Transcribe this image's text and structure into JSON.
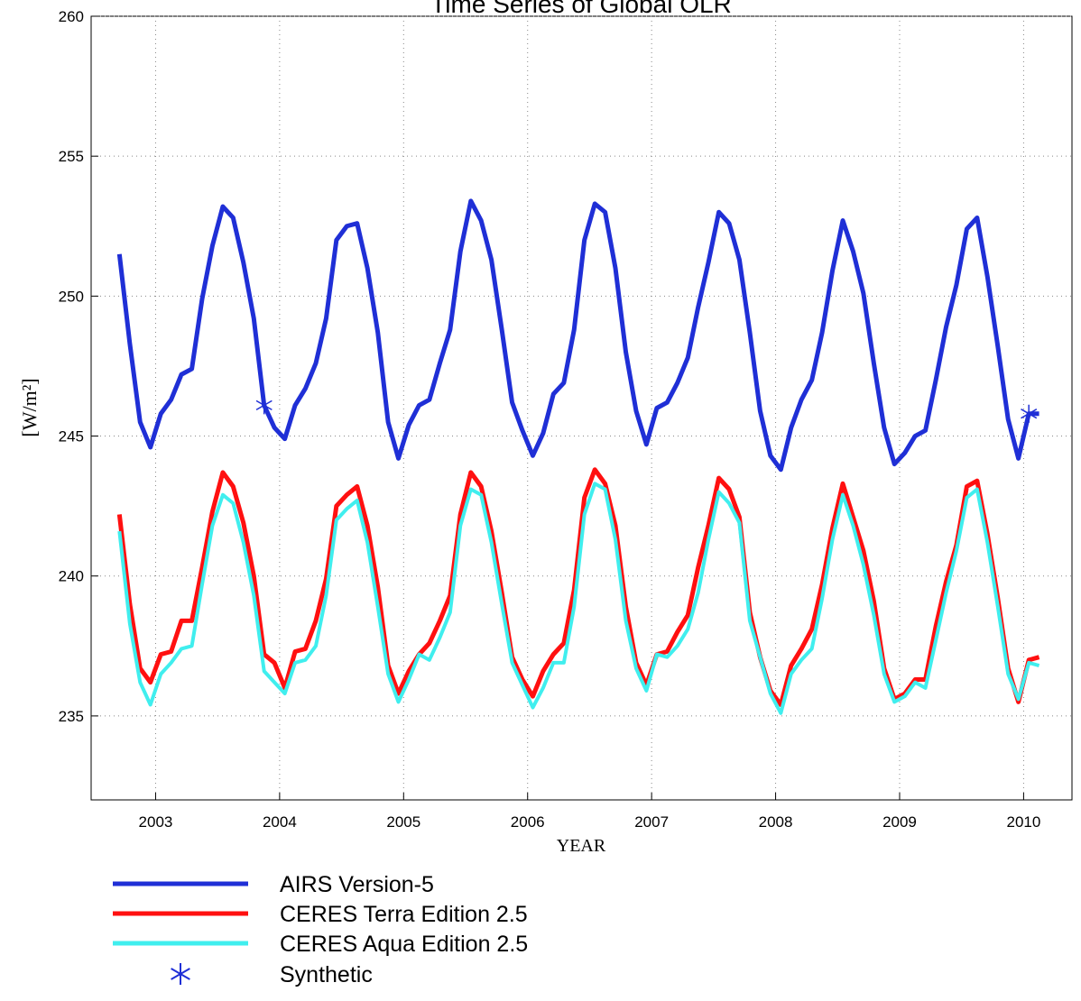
{
  "chart_data": {
    "type": "line",
    "title": "Time Series of Global OLR",
    "x_label": "YEAR",
    "y_label": "[W/m²]",
    "x": [
      2002.708,
      2002.792,
      2002.875,
      2002.958,
      2003.042,
      2003.125,
      2003.208,
      2003.292,
      2003.375,
      2003.458,
      2003.542,
      2003.625,
      2003.708,
      2003.792,
      2003.875,
      2003.958,
      2004.042,
      2004.125,
      2004.208,
      2004.292,
      2004.375,
      2004.458,
      2004.542,
      2004.625,
      2004.708,
      2004.792,
      2004.875,
      2004.958,
      2005.042,
      2005.125,
      2005.208,
      2005.292,
      2005.375,
      2005.458,
      2005.542,
      2005.625,
      2005.708,
      2005.792,
      2005.875,
      2005.958,
      2006.042,
      2006.125,
      2006.208,
      2006.292,
      2006.375,
      2006.458,
      2006.542,
      2006.625,
      2006.708,
      2006.792,
      2006.875,
      2006.958,
      2007.042,
      2007.125,
      2007.208,
      2007.292,
      2007.375,
      2007.458,
      2007.542,
      2007.625,
      2007.708,
      2007.792,
      2007.875,
      2007.958,
      2008.042,
      2008.125,
      2008.208,
      2008.292,
      2008.375,
      2008.458,
      2008.542,
      2008.625,
      2008.708,
      2008.792,
      2008.875,
      2008.958,
      2009.042,
      2009.125,
      2009.208,
      2009.292,
      2009.375,
      2009.458,
      2009.542,
      2009.625,
      2009.708,
      2009.792,
      2009.875,
      2009.958,
      2010.042,
      2010.125
    ],
    "series": [
      {
        "name": "AIRS Version-5",
        "color": "#1f2fd6",
        "width": 5,
        "values": [
          251.5,
          248.3,
          245.5,
          244.6,
          245.8,
          246.3,
          247.2,
          247.4,
          249.9,
          251.8,
          253.2,
          252.8,
          251.2,
          249.2,
          246.1,
          245.3,
          244.9,
          246.1,
          246.7,
          247.6,
          249.2,
          252.0,
          252.5,
          252.6,
          251.0,
          248.7,
          245.5,
          244.2,
          245.4,
          246.1,
          246.3,
          247.6,
          248.8,
          251.6,
          253.4,
          252.7,
          251.3,
          248.8,
          246.2,
          245.2,
          244.3,
          245.1,
          246.5,
          246.9,
          248.8,
          252.0,
          253.3,
          253.0,
          251.0,
          248.0,
          245.9,
          244.7,
          246.0,
          246.2,
          246.9,
          247.8,
          249.6,
          251.2,
          253.0,
          252.6,
          251.3,
          248.7,
          245.9,
          244.3,
          243.8,
          245.3,
          246.3,
          247.0,
          248.7,
          250.9,
          252.7,
          251.6,
          250.1,
          247.6,
          245.3,
          244.0,
          244.4,
          245.0,
          245.2,
          247.0,
          248.9,
          250.4,
          252.4,
          252.8,
          250.7,
          248.2,
          245.6,
          244.2,
          245.8,
          245.8
        ]
      },
      {
        "name": "CERES Terra Edition 2.5",
        "color": "#ff1010",
        "width": 5,
        "values": [
          242.2,
          239.0,
          236.7,
          236.2,
          237.2,
          237.3,
          238.4,
          238.4,
          240.3,
          242.3,
          243.7,
          243.2,
          241.9,
          240.0,
          237.2,
          236.9,
          236.0,
          237.3,
          237.4,
          238.4,
          239.9,
          242.5,
          242.9,
          243.2,
          241.8,
          239.6,
          236.8,
          235.8,
          236.6,
          237.2,
          237.6,
          238.4,
          239.3,
          242.2,
          243.7,
          243.2,
          241.6,
          239.4,
          237.1,
          236.3,
          235.7,
          236.6,
          237.2,
          237.6,
          239.5,
          242.8,
          243.8,
          243.3,
          241.8,
          238.9,
          236.9,
          236.1,
          237.2,
          237.3,
          238.0,
          238.6,
          240.3,
          241.8,
          243.5,
          243.1,
          242.1,
          238.7,
          237.1,
          235.9,
          235.4,
          236.8,
          237.4,
          238.1,
          239.7,
          241.7,
          243.3,
          242.1,
          240.9,
          239.1,
          236.7,
          235.6,
          235.8,
          236.3,
          236.3,
          238.2,
          239.8,
          241.1,
          243.2,
          243.4,
          241.5,
          239.2,
          236.7,
          235.5,
          237.0,
          237.1
        ]
      },
      {
        "name": "CERES Aqua Edition 2.5",
        "color": "#40eeee",
        "width": 4,
        "values": [
          241.6,
          238.3,
          236.2,
          235.4,
          236.5,
          236.9,
          237.4,
          237.5,
          239.7,
          241.8,
          242.9,
          242.6,
          241.2,
          239.3,
          236.6,
          236.2,
          235.8,
          236.9,
          237.0,
          237.5,
          239.3,
          242.0,
          242.4,
          242.7,
          241.2,
          238.9,
          236.5,
          235.5,
          236.3,
          237.2,
          237.0,
          237.8,
          238.7,
          241.8,
          243.1,
          242.9,
          241.2,
          239.0,
          236.9,
          236.1,
          235.3,
          236.0,
          236.9,
          236.9,
          238.9,
          242.2,
          243.3,
          243.1,
          241.3,
          238.4,
          236.7,
          235.9,
          237.2,
          237.1,
          237.5,
          238.1,
          239.4,
          241.3,
          243.0,
          242.6,
          241.9,
          238.4,
          237.1,
          235.8,
          235.1,
          236.5,
          237.0,
          237.4,
          239.2,
          241.3,
          242.9,
          241.8,
          240.4,
          238.6,
          236.5,
          235.5,
          235.7,
          236.2,
          236.0,
          237.7,
          239.4,
          240.9,
          242.8,
          243.1,
          241.2,
          238.9,
          236.5,
          235.6,
          236.9,
          236.8
        ]
      },
      {
        "name": "Synthetic",
        "color": "#1f2fd6",
        "marker": "asterisk",
        "x": [
          2003.875,
          2010.042
        ],
        "values": [
          246.1,
          245.8
        ]
      }
    ],
    "xlim": [
      2002.48,
      2010.39
    ],
    "xticks": [
      2003,
      2004,
      2005,
      2006,
      2007,
      2008,
      2009,
      2010
    ],
    "ylim": [
      232,
      260
    ],
    "yticks": [
      235,
      240,
      245,
      250,
      255,
      260
    ],
    "grid": true
  }
}
